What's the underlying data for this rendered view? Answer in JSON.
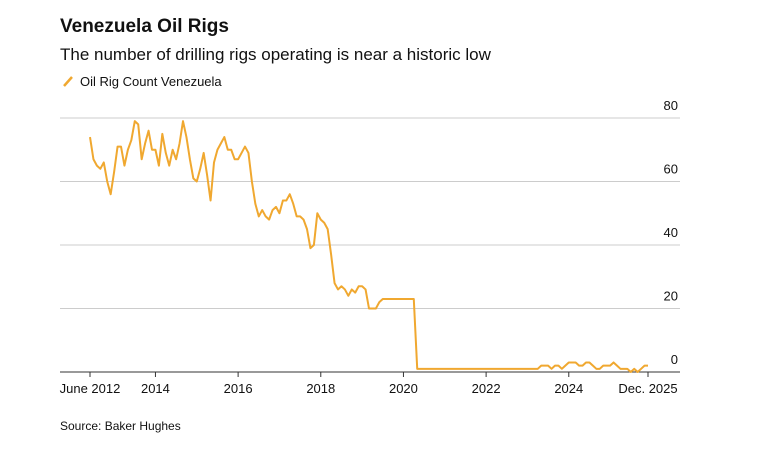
{
  "chart_data": {
    "type": "line",
    "title": "Venezuela Oil Rigs",
    "subtitle": "The number of drilling rigs operating is near a historic low",
    "source": "Source: Baker Hughes",
    "x": [
      "2012-06",
      "2012-07",
      "2012-08",
      "2012-09",
      "2012-10",
      "2012-11",
      "2012-12",
      "2013-01",
      "2013-02",
      "2013-03",
      "2013-04",
      "2013-05",
      "2013-06",
      "2013-07",
      "2013-08",
      "2013-09",
      "2013-10",
      "2013-11",
      "2013-12",
      "2014-01",
      "2014-02",
      "2014-03",
      "2014-04",
      "2014-05",
      "2014-06",
      "2014-07",
      "2014-08",
      "2014-09",
      "2014-10",
      "2014-11",
      "2014-12",
      "2015-01",
      "2015-02",
      "2015-03",
      "2015-04",
      "2015-05",
      "2015-06",
      "2015-07",
      "2015-08",
      "2015-09",
      "2015-10",
      "2015-11",
      "2015-12",
      "2016-01",
      "2016-02",
      "2016-03",
      "2016-04",
      "2016-05",
      "2016-06",
      "2016-07",
      "2016-08",
      "2016-09",
      "2016-10",
      "2016-11",
      "2016-12",
      "2017-01",
      "2017-02",
      "2017-03",
      "2017-04",
      "2017-05",
      "2017-06",
      "2017-07",
      "2017-08",
      "2017-09",
      "2017-10",
      "2017-11",
      "2017-12",
      "2018-01",
      "2018-02",
      "2018-03",
      "2018-04",
      "2018-05",
      "2018-06",
      "2018-07",
      "2018-08",
      "2018-09",
      "2018-10",
      "2018-11",
      "2018-12",
      "2019-01",
      "2019-02",
      "2019-03",
      "2019-04",
      "2019-05",
      "2019-06",
      "2019-07",
      "2019-08",
      "2019-09",
      "2019-10",
      "2019-11",
      "2019-12",
      "2020-01",
      "2020-02",
      "2020-03",
      "2020-04",
      "2020-05",
      "2023-04",
      "2023-05",
      "2023-06",
      "2023-07",
      "2023-08",
      "2023-09",
      "2023-10",
      "2023-11",
      "2023-12",
      "2024-01",
      "2024-02",
      "2024-03",
      "2024-04",
      "2024-05",
      "2024-06",
      "2024-07",
      "2024-08",
      "2024-09",
      "2024-10",
      "2024-11",
      "2024-12",
      "2025-01",
      "2025-02",
      "2025-03",
      "2025-04",
      "2025-05",
      "2025-06",
      "2025-07",
      "2025-08",
      "2025-09",
      "2025-10",
      "2025-11",
      "2025-12"
    ],
    "series": [
      {
        "name": "Oil Rig Count Venezuela",
        "color": "#f0a830",
        "values": [
          74,
          67,
          65,
          64,
          66,
          60,
          56,
          63,
          71,
          71,
          65,
          70,
          73,
          79,
          78,
          67,
          72,
          76,
          70,
          70,
          65,
          75,
          69,
          65,
          70,
          67,
          72,
          79,
          74,
          67,
          61,
          60,
          64,
          69,
          62,
          54,
          66,
          70,
          72,
          74,
          70,
          70,
          67,
          67,
          69,
          71,
          69,
          60,
          53,
          49,
          51,
          49,
          48,
          51,
          52,
          50,
          54,
          54,
          56,
          53,
          49,
          49,
          48,
          45,
          39,
          40,
          50,
          48,
          47,
          45,
          37,
          28,
          26,
          27,
          26,
          24,
          26,
          25,
          27,
          27,
          26,
          20,
          20,
          20,
          22,
          23,
          23,
          23,
          23,
          23,
          23,
          23,
          23,
          23,
          23,
          1,
          1,
          2,
          2,
          2,
          1,
          2,
          2,
          1,
          2,
          3,
          3,
          3,
          2,
          2,
          3,
          3,
          2,
          1,
          1,
          2,
          2,
          2,
          3,
          2,
          1,
          1,
          1,
          0,
          1,
          0,
          1,
          2,
          2
        ]
      }
    ],
    "xlim": [
      "2012-06",
      "2025-12"
    ],
    "xticks": [
      {
        "value": "2012-06",
        "label": "June 2012"
      },
      {
        "value": "2014-01",
        "label": "2014"
      },
      {
        "value": "2016-01",
        "label": "2016"
      },
      {
        "value": "2018-01",
        "label": "2018"
      },
      {
        "value": "2020-01",
        "label": "2020"
      },
      {
        "value": "2022-01",
        "label": "2022"
      },
      {
        "value": "2024-01",
        "label": "2024"
      },
      {
        "value": "2025-12",
        "label": "Dec. 2025"
      }
    ],
    "ylim": [
      0,
      80
    ],
    "yticks": [
      0,
      20,
      40,
      60,
      80
    ],
    "grid": true
  }
}
